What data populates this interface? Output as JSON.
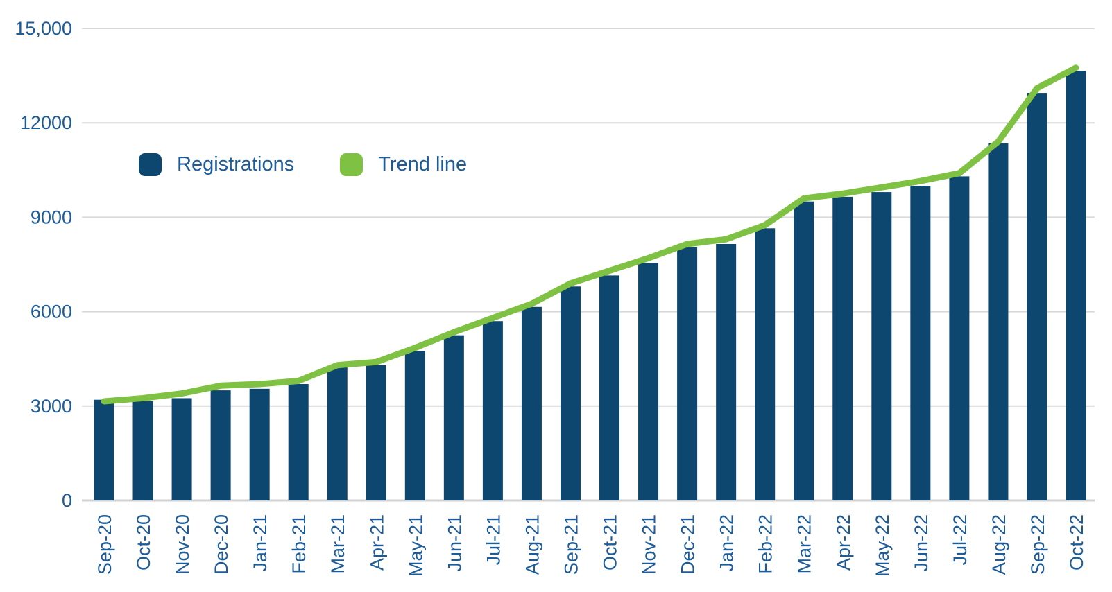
{
  "chart_data": {
    "type": "bar",
    "title": "",
    "xlabel": "",
    "ylabel": "",
    "categories": [
      "Sep-20",
      "Oct-20",
      "Nov-20",
      "Dec-20",
      "Jan-21",
      "Feb-21",
      "Mar-21",
      "Apr-21",
      "May-21",
      "Jun-21",
      "Jul-21",
      "Aug-21",
      "Sep-21",
      "Oct-21",
      "Nov-21",
      "Dec-21",
      "Jan-22",
      "Feb-22",
      "Mar-22",
      "Apr-22",
      "May-22",
      "Jun-22",
      "Jul-22",
      "Aug-22",
      "Sep-22",
      "Oct-22"
    ],
    "series": [
      {
        "name": "Registrations",
        "type": "bar",
        "color": "#0d466e",
        "values": [
          3200,
          3150,
          3250,
          3500,
          3550,
          3700,
          4250,
          4300,
          4750,
          5250,
          5700,
          6150,
          6800,
          7150,
          7550,
          8050,
          8150,
          8650,
          9500,
          9650,
          9800,
          10000,
          10300,
          11350,
          12950,
          13650
        ]
      },
      {
        "name": "Trend line",
        "type": "line",
        "color": "#7fc142",
        "values": [
          3150,
          3250,
          3400,
          3650,
          3700,
          3800,
          4300,
          4400,
          4850,
          5350,
          5800,
          6250,
          6900,
          7300,
          7700,
          8150,
          8300,
          8750,
          9600,
          9750,
          9950,
          10150,
          10400,
          11400,
          13100,
          13750
        ]
      }
    ],
    "ylim": [
      0,
      15000
    ],
    "ytick_values": [
      0,
      3000,
      6000,
      9000,
      12000,
      15000
    ],
    "ytick_labels": [
      "0",
      "3000",
      "6000",
      "9000",
      "12000",
      "15,000"
    ],
    "grid": true,
    "legend_position": "top-left"
  },
  "colors": {
    "bar": "#0d466e",
    "line": "#7fc142",
    "axis_text": "#1d5c99",
    "gridline": "#d9d9d9",
    "baseline": "#d2d2d2",
    "background": "#ffffff"
  }
}
